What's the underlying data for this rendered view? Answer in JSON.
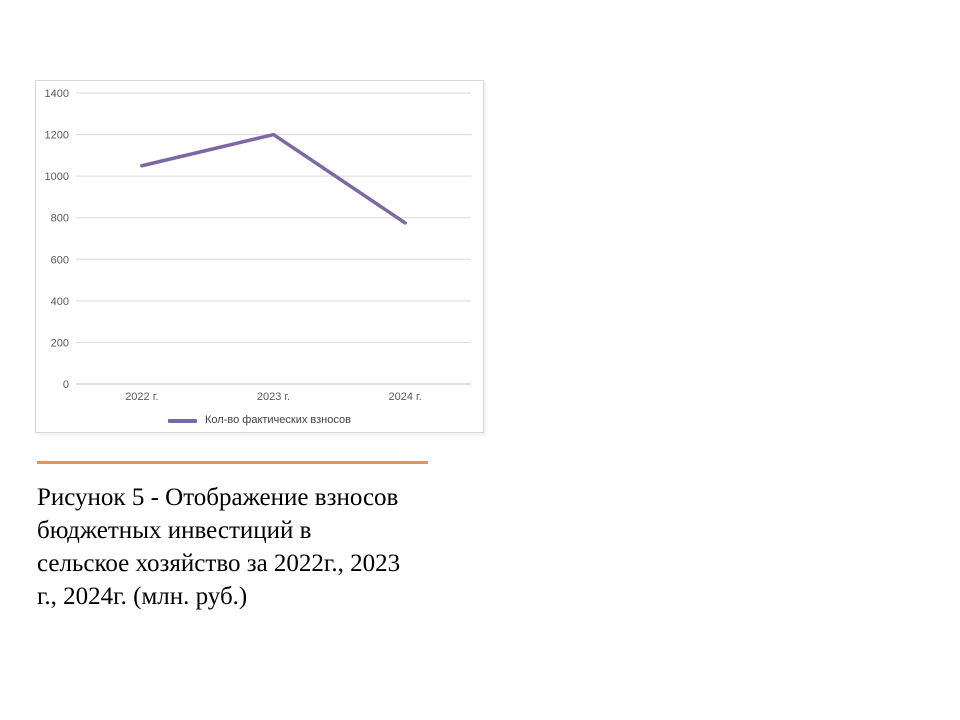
{
  "chart_data": {
    "type": "line",
    "categories": [
      "2022 г.",
      "2023 г.",
      "2024 г."
    ],
    "series": [
      {
        "name": "Кол-во фактических взносов",
        "values": [
          1050,
          1200,
          775
        ],
        "color": "#7B68A5"
      }
    ],
    "title": "",
    "xlabel": "",
    "ylabel": "",
    "ylim": [
      0,
      1400
    ],
    "ytick_step": 200,
    "yticks": [
      0,
      200,
      400,
      600,
      800,
      1000,
      1200,
      1400
    ],
    "grid": true,
    "legend_position": "bottom"
  },
  "caption": {
    "lines": [
      "Рисунок 5 - Отображение взносов",
      "бюджетных инвестиций в",
      "сельское хозяйство за 2022г., 2023",
      "г., 2024г. (млн. руб.)"
    ]
  },
  "colors": {
    "accent_orange": "#E8954A",
    "series_purple": "#7B68A5",
    "grid_line": "#D9D9D9",
    "axis_line": "#BFBFBF",
    "tick_label": "#595959"
  }
}
